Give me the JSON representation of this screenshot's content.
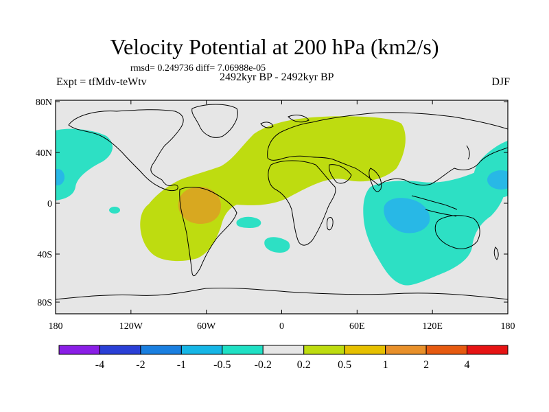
{
  "title": "Velocity Potential at 200 hPa (km2/s)",
  "stats": "rmsd= 0.249736 diff= 7.06988e-05",
  "left_label": "Expt = tfMdv-teWtv",
  "center_label": "2492kyr BP - 2492kyr BP",
  "right_label": "DJF",
  "lat_labels": [
    "80N",
    "40N",
    "0",
    "40S",
    "80S"
  ],
  "lon_labels": [
    "180",
    "120W",
    "60W",
    "0",
    "60E",
    "120E",
    "180"
  ],
  "colorbar": {
    "labels": [
      "-4",
      "-2",
      "-1",
      "-0.5",
      "-0.2",
      "0.2",
      "0.5",
      "1",
      "2",
      "4"
    ],
    "colors": [
      "#8a1ee6",
      "#2a3fd6",
      "#1a7fe0",
      "#16b6e6",
      "#1fe0c4",
      "#e6e6e6",
      "#bedc10",
      "#e6c000",
      "#e8902a",
      "#e65a10",
      "#e61414"
    ]
  },
  "field_colors": {
    "background": "#e6e6e6",
    "pos_0_2": "#bedc10",
    "pos_0_5": "#d8a820",
    "neg_0_2": "#2de0c4",
    "neg_0_5": "#28b8e6"
  }
}
